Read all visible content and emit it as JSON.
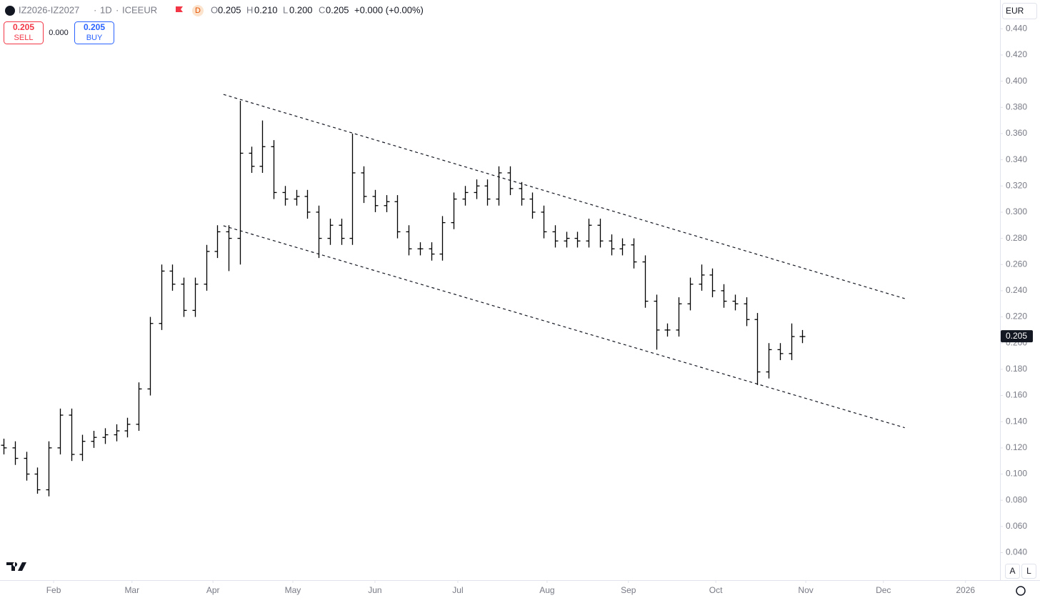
{
  "header": {
    "symbol": "IZ2026-IZ2027",
    "interval": "1D",
    "exchange": "ICEEUR",
    "flag": "D",
    "open_label": "O",
    "open": "0.205",
    "high_label": "H",
    "high": "0.210",
    "low_label": "L",
    "low": "0.200",
    "close_label": "C",
    "close": "0.205",
    "change": "+0.000 (+0.00%)",
    "currency": "EUR"
  },
  "trade": {
    "sell_price": "0.205",
    "sell": "SELL",
    "spread": "0.000",
    "buy_price": "0.205",
    "buy": "BUY"
  },
  "scale_buttons": [
    "A",
    "L"
  ],
  "chart_data": {
    "type": "ohlc",
    "color": "#000000",
    "grid": false,
    "x": [
      1,
      4,
      7,
      10,
      13,
      16,
      19,
      22,
      25,
      28,
      31,
      34,
      37,
      40,
      43,
      46,
      49,
      52,
      55,
      58,
      61,
      64,
      67,
      70,
      73,
      76,
      79,
      82,
      85,
      88,
      91,
      94,
      97,
      100,
      103,
      106,
      109,
      112,
      115,
      118,
      121,
      124,
      127,
      130,
      133,
      136,
      139,
      142,
      145,
      148,
      151,
      154,
      157,
      160,
      163,
      166,
      169,
      172,
      175,
      178,
      181,
      184,
      187,
      190,
      193,
      196,
      199,
      202,
      205,
      208,
      211,
      214
    ],
    "open": [
      0.122,
      0.12,
      0.112,
      0.1,
      0.088,
      0.12,
      0.145,
      0.115,
      0.125,
      0.128,
      0.13,
      0.133,
      0.138,
      0.165,
      0.215,
      0.255,
      0.245,
      0.225,
      0.245,
      0.27,
      0.285,
      0.28,
      0.345,
      0.335,
      0.35,
      0.315,
      0.31,
      0.312,
      0.3,
      0.28,
      0.29,
      0.28,
      0.33,
      0.312,
      0.305,
      0.308,
      0.285,
      0.272,
      0.272,
      0.268,
      0.292,
      0.31,
      0.315,
      0.32,
      0.31,
      0.33,
      0.318,
      0.31,
      0.3,
      0.285,
      0.278,
      0.28,
      0.278,
      0.29,
      0.278,
      0.272,
      0.275,
      0.262,
      0.232,
      0.21,
      0.21,
      0.23,
      0.245,
      0.252,
      0.24,
      0.232,
      0.23,
      0.218,
      0.178,
      0.195,
      0.192,
      0.205
    ],
    "high": [
      0.127,
      0.125,
      0.117,
      0.105,
      0.125,
      0.15,
      0.15,
      0.13,
      0.133,
      0.135,
      0.138,
      0.143,
      0.17,
      0.22,
      0.26,
      0.26,
      0.25,
      0.25,
      0.275,
      0.29,
      0.29,
      0.385,
      0.35,
      0.37,
      0.355,
      0.32,
      0.317,
      0.317,
      0.305,
      0.295,
      0.295,
      0.36,
      0.335,
      0.317,
      0.313,
      0.313,
      0.29,
      0.277,
      0.277,
      0.297,
      0.315,
      0.32,
      0.325,
      0.325,
      0.335,
      0.335,
      0.323,
      0.315,
      0.305,
      0.29,
      0.285,
      0.285,
      0.295,
      0.295,
      0.283,
      0.28,
      0.28,
      0.267,
      0.237,
      0.215,
      0.235,
      0.25,
      0.26,
      0.257,
      0.245,
      0.237,
      0.235,
      0.223,
      0.2,
      0.2,
      0.215,
      0.21
    ],
    "low": [
      0.115,
      0.107,
      0.095,
      0.085,
      0.083,
      0.115,
      0.11,
      0.11,
      0.12,
      0.123,
      0.125,
      0.128,
      0.133,
      0.16,
      0.21,
      0.24,
      0.22,
      0.22,
      0.24,
      0.265,
      0.255,
      0.26,
      0.33,
      0.33,
      0.31,
      0.305,
      0.305,
      0.295,
      0.265,
      0.275,
      0.275,
      0.275,
      0.307,
      0.3,
      0.3,
      0.28,
      0.267,
      0.267,
      0.263,
      0.263,
      0.287,
      0.305,
      0.31,
      0.305,
      0.305,
      0.313,
      0.305,
      0.295,
      0.28,
      0.273,
      0.273,
      0.273,
      0.273,
      0.273,
      0.267,
      0.267,
      0.257,
      0.227,
      0.195,
      0.205,
      0.205,
      0.225,
      0.24,
      0.235,
      0.227,
      0.225,
      0.213,
      0.168,
      0.173,
      0.187,
      0.187,
      0.2
    ],
    "close": [
      0.12,
      0.112,
      0.1,
      0.088,
      0.12,
      0.145,
      0.115,
      0.125,
      0.128,
      0.13,
      0.133,
      0.138,
      0.165,
      0.215,
      0.255,
      0.245,
      0.225,
      0.245,
      0.27,
      0.285,
      0.28,
      0.345,
      0.335,
      0.35,
      0.315,
      0.31,
      0.312,
      0.3,
      0.28,
      0.29,
      0.28,
      0.33,
      0.312,
      0.305,
      0.308,
      0.285,
      0.272,
      0.272,
      0.268,
      0.292,
      0.31,
      0.315,
      0.32,
      0.31,
      0.33,
      0.318,
      0.31,
      0.3,
      0.285,
      0.278,
      0.28,
      0.278,
      0.29,
      0.278,
      0.272,
      0.275,
      0.262,
      0.232,
      0.21,
      0.21,
      0.23,
      0.245,
      0.252,
      0.24,
      0.232,
      0.23,
      0.218,
      0.178,
      0.195,
      0.192,
      0.205,
      0.205
    ],
    "xlim": [
      0,
      266.7
    ],
    "ylim": [
      0.019,
      0.462
    ],
    "xticks": [
      {
        "value": 14.3,
        "label": "Feb"
      },
      {
        "value": 35.2,
        "label": "Mar"
      },
      {
        "value": 56.8,
        "label": "Apr"
      },
      {
        "value": 78.1,
        "label": "May"
      },
      {
        "value": 100,
        "label": "Jun"
      },
      {
        "value": 122.1,
        "label": "Jul"
      },
      {
        "value": 145.9,
        "label": "Aug"
      },
      {
        "value": 167.6,
        "label": "Sep"
      },
      {
        "value": 190.9,
        "label": "Oct"
      },
      {
        "value": 214.9,
        "label": "Nov"
      },
      {
        "value": 235.6,
        "label": "Dec"
      },
      {
        "value": 257.5,
        "label": "2026"
      }
    ],
    "yticks": [
      {
        "value": 0.04,
        "label": "0.040"
      },
      {
        "value": 0.06,
        "label": "0.060"
      },
      {
        "value": 0.08,
        "label": "0.080"
      },
      {
        "value": 0.1,
        "label": "0.100"
      },
      {
        "value": 0.12,
        "label": "0.120"
      },
      {
        "value": 0.14,
        "label": "0.140"
      },
      {
        "value": 0.16,
        "label": "0.160"
      },
      {
        "value": 0.18,
        "label": "0.180"
      },
      {
        "value": 0.2,
        "label": "0.200"
      },
      {
        "value": 0.22,
        "label": "0.220"
      },
      {
        "value": 0.24,
        "label": "0.240"
      },
      {
        "value": 0.26,
        "label": "0.260"
      },
      {
        "value": 0.28,
        "label": "0.280"
      },
      {
        "value": 0.3,
        "label": "0.300"
      },
      {
        "value": 0.32,
        "label": "0.320"
      },
      {
        "value": 0.34,
        "label": "0.340"
      },
      {
        "value": 0.36,
        "label": "0.360"
      },
      {
        "value": 0.38,
        "label": "0.380"
      },
      {
        "value": 0.4,
        "label": "0.400"
      },
      {
        "value": 0.42,
        "label": "0.420"
      },
      {
        "value": 0.44,
        "label": "0.440"
      }
    ],
    "last_price": {
      "value": 0.205,
      "label": "0.205"
    },
    "trendlines": [
      {
        "x": [
          59.6,
          241.3
        ],
        "y": [
          0.3899,
          0.234
        ]
      },
      {
        "x": [
          59.6,
          241.3
        ],
        "y": [
          0.2896,
          0.1354
        ]
      }
    ]
  }
}
